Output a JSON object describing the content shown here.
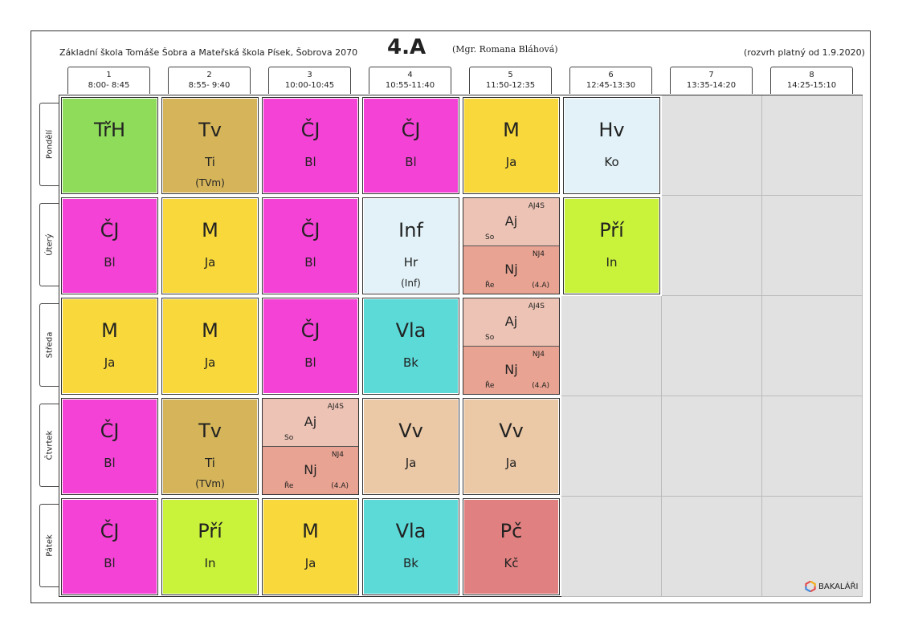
{
  "header": {
    "school": "Základní škola Tomáše Šobra a Mateřská škola Písek, Šobrova 2070",
    "class_name": "4.A",
    "teacher": "(Mgr. Romana Bláhová)",
    "validity": "(rozvrh platný od 1.9.2020)"
  },
  "hours": [
    {
      "num": "1",
      "time": "8:00- 8:45"
    },
    {
      "num": "2",
      "time": "8:55- 9:40"
    },
    {
      "num": "3",
      "time": "10:00-10:45"
    },
    {
      "num": "4",
      "time": "10:55-11:40"
    },
    {
      "num": "5",
      "time": "11:50-12:35"
    },
    {
      "num": "6",
      "time": "12:45-13:30"
    },
    {
      "num": "7",
      "time": "13:35-14:20"
    },
    {
      "num": "8",
      "time": "14:25-15:10"
    }
  ],
  "days": [
    "Pondělí",
    "Úterý",
    "Středa",
    "Čtvrtek",
    "Pátek"
  ],
  "colors": {
    "TrH": "#8fdc5a",
    "Tv": "#d6b55a",
    "CJ": "#f542d6",
    "M": "#f8d83a",
    "Hv": "#e2f2f8",
    "Inf": "#e2f2f8",
    "Pri": "#c9f23a",
    "Vla": "#5bdad8",
    "Vv": "#ebc8a6",
    "Pc": "#e18080",
    "empty": "#e1e1e1"
  },
  "schedule": [
    [
      {
        "subject": "TřH",
        "teacher": "",
        "room": "",
        "color": "#8fdc5a"
      },
      {
        "subject": "Tv",
        "teacher": "Ti",
        "room": "(TVm)",
        "color": "#d6b55a"
      },
      {
        "subject": "ČJ",
        "teacher": "Bl",
        "room": "",
        "color": "#f542d6"
      },
      {
        "subject": "ČJ",
        "teacher": "Bl",
        "room": "",
        "color": "#f542d6"
      },
      {
        "subject": "M",
        "teacher": "Ja",
        "room": "",
        "color": "#f8d83a"
      },
      {
        "subject": "Hv",
        "teacher": "Ko",
        "room": "",
        "color": "#e2f2f8"
      },
      null,
      null
    ],
    [
      {
        "subject": "ČJ",
        "teacher": "Bl",
        "room": "",
        "color": "#f542d6"
      },
      {
        "subject": "M",
        "teacher": "Ja",
        "room": "",
        "color": "#f8d83a"
      },
      {
        "subject": "ČJ",
        "teacher": "Bl",
        "room": "",
        "color": "#f542d6"
      },
      {
        "subject": "Inf",
        "teacher": "Hr",
        "room": "(Inf)",
        "color": "#e2f2f8"
      },
      {
        "split": [
          {
            "subject": "Aj",
            "group": "AJ4S",
            "teacher": "So",
            "room": ""
          },
          {
            "subject": "Nj",
            "group": "NJ4",
            "teacher": "Ře",
            "room": "(4.A)"
          }
        ]
      },
      {
        "subject": "Pří",
        "teacher": "In",
        "room": "",
        "color": "#c9f23a"
      },
      null,
      null
    ],
    [
      {
        "subject": "M",
        "teacher": "Ja",
        "room": "",
        "color": "#f8d83a"
      },
      {
        "subject": "M",
        "teacher": "Ja",
        "room": "",
        "color": "#f8d83a"
      },
      {
        "subject": "ČJ",
        "teacher": "Bl",
        "room": "",
        "color": "#f542d6"
      },
      {
        "subject": "Vla",
        "teacher": "Bk",
        "room": "",
        "color": "#5bdad8"
      },
      {
        "split": [
          {
            "subject": "Aj",
            "group": "AJ4S",
            "teacher": "So",
            "room": ""
          },
          {
            "subject": "Nj",
            "group": "NJ4",
            "teacher": "Ře",
            "room": "(4.A)"
          }
        ]
      },
      null,
      null,
      null
    ],
    [
      {
        "subject": "ČJ",
        "teacher": "Bl",
        "room": "",
        "color": "#f542d6"
      },
      {
        "subject": "Tv",
        "teacher": "Ti",
        "room": "(TVm)",
        "color": "#d6b55a"
      },
      {
        "split": [
          {
            "subject": "Aj",
            "group": "AJ4S",
            "teacher": "So",
            "room": ""
          },
          {
            "subject": "Nj",
            "group": "NJ4",
            "teacher": "Ře",
            "room": "(4.A)"
          }
        ]
      },
      {
        "subject": "Vv",
        "teacher": "Ja",
        "room": "",
        "color": "#ebc8a6"
      },
      {
        "subject": "Vv",
        "teacher": "Ja",
        "room": "",
        "color": "#ebc8a6"
      },
      null,
      null,
      null
    ],
    [
      {
        "subject": "ČJ",
        "teacher": "Bl",
        "room": "",
        "color": "#f542d6"
      },
      {
        "subject": "Pří",
        "teacher": "In",
        "room": "",
        "color": "#c9f23a"
      },
      {
        "subject": "M",
        "teacher": "Ja",
        "room": "",
        "color": "#f8d83a"
      },
      {
        "subject": "Vla",
        "teacher": "Bk",
        "room": "",
        "color": "#5bdad8"
      },
      {
        "subject": "Pč",
        "teacher": "Kč",
        "room": "",
        "color": "#e18080"
      },
      null,
      null,
      null
    ]
  ],
  "footer": {
    "logo_text": "BAKALÁŘI",
    "logo_icon": "bakalari-logo-icon"
  }
}
